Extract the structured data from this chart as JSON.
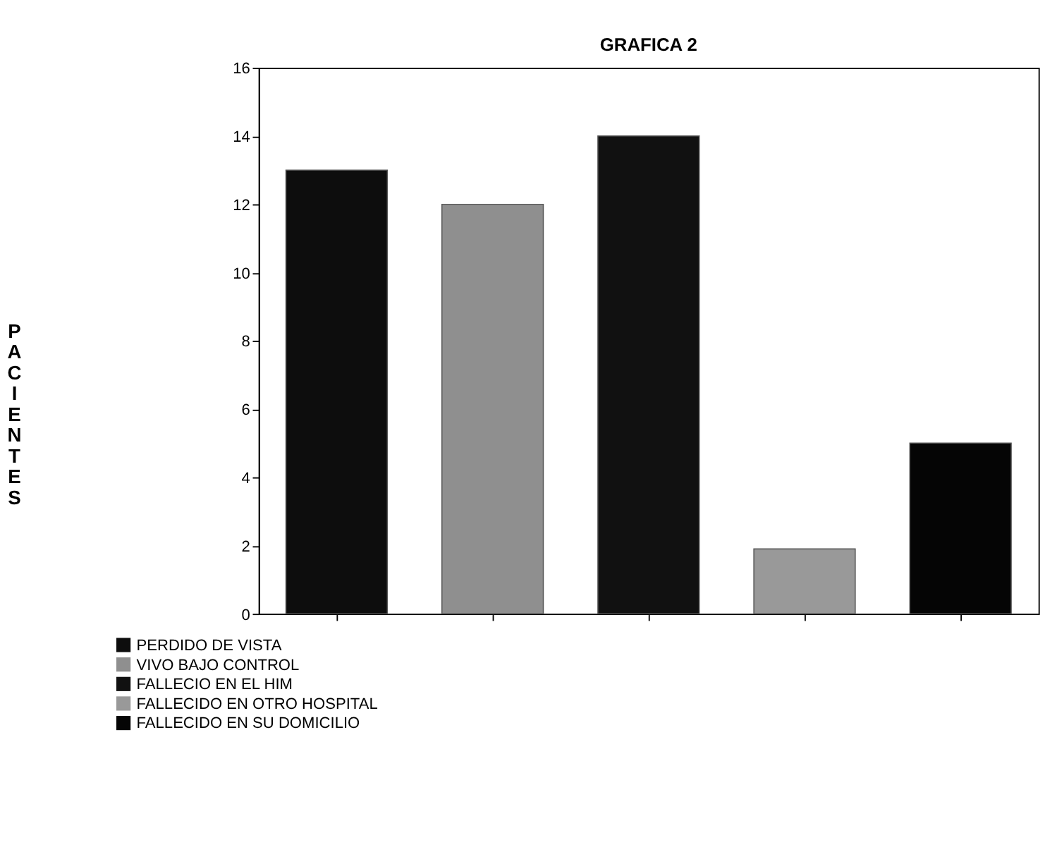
{
  "chart_data": {
    "type": "bar",
    "title": "GRAFICA 2",
    "ylabel": "PACIENTES",
    "categories": [
      null,
      null,
      null,
      null,
      null
    ],
    "series": [
      {
        "name": "PERDIDO DE VISTA",
        "color": "#0d0d0d",
        "values": [
          13,
          null,
          null,
          null,
          null
        ]
      },
      {
        "name": "VIVO BAJO CONTROL",
        "color": "#8f8f8f",
        "values": [
          null,
          12,
          null,
          null,
          null
        ]
      },
      {
        "name": "FALLECIO EN EL HIM",
        "color": "#111111",
        "values": [
          null,
          null,
          14,
          null,
          null
        ]
      },
      {
        "name": "FALLECIDO EN OTRO HOSPITAL",
        "color": "#999999",
        "values": [
          null,
          null,
          null,
          1.9,
          null
        ]
      },
      {
        "name": "FALLECIDO EN SU DOMICILIO",
        "color": "#050505",
        "values": [
          null,
          null,
          null,
          null,
          5
        ]
      }
    ],
    "ylim": [
      0,
      16
    ],
    "yticks": [
      0,
      2,
      4,
      6,
      8,
      10,
      12,
      14,
      16
    ],
    "grid": false,
    "legend": "bottom left"
  }
}
